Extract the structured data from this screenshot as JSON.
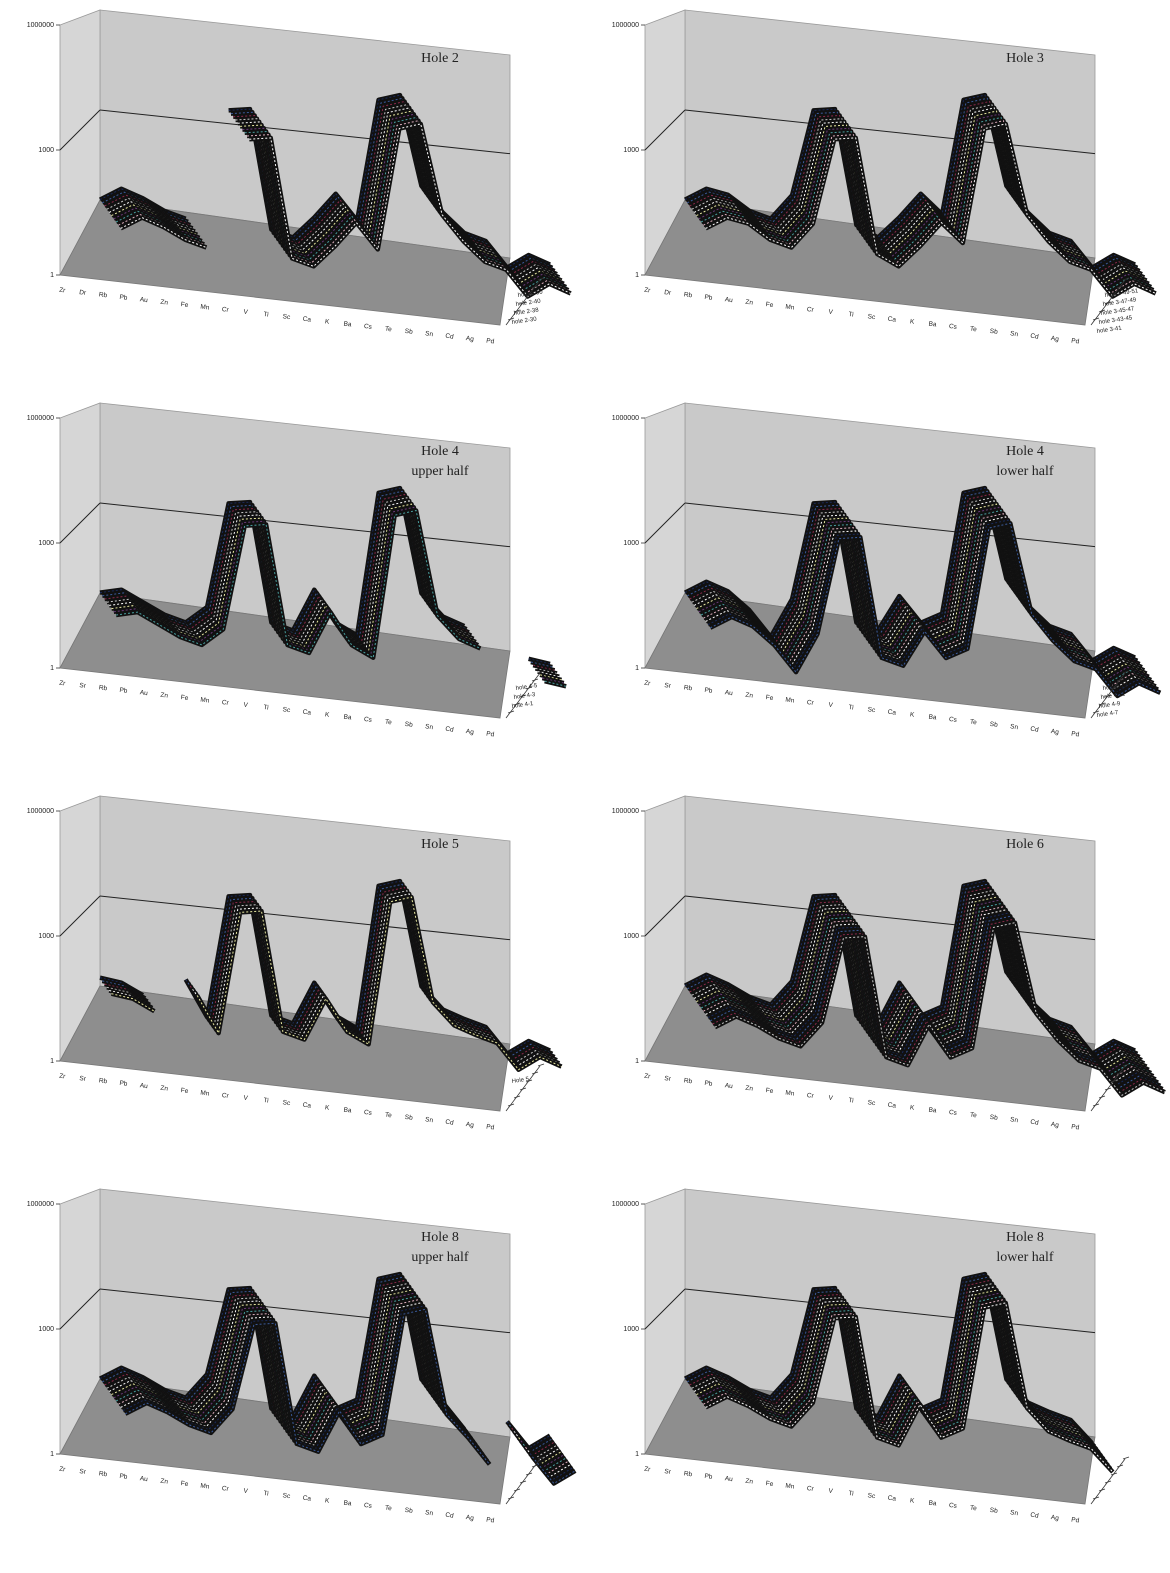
{
  "chart_data": [
    {
      "type": "line",
      "render": "3d-multi-series",
      "title": [
        "Hole 2"
      ],
      "yscale": "log",
      "yticks": [
        "1",
        "1000",
        "1000000"
      ],
      "ylim": [
        1,
        1000000
      ],
      "categories": [
        "Zr",
        "Dr",
        "Rb",
        "Pb",
        "Au",
        "Zn",
        "Fe",
        "Mn",
        "Cr",
        "V",
        "Ti",
        "Sc",
        "Ca",
        "K",
        "Ba",
        "Cs",
        "Te",
        "Sb",
        "Sn",
        "Cd",
        "Ag",
        "Pd"
      ],
      "legend_labels": [
        "hole 2-50",
        "hole 2-40",
        "hole 2-38",
        "hole 2-30"
      ],
      "series_count": 10,
      "profile": [
        90,
        200,
        120,
        60,
        40,
        null,
        50000,
        60000,
        30,
        20,
        80,
        400,
        80,
        200000,
        300000,
        1000,
        200,
        60,
        40,
        8,
        20,
        12
      ]
    },
    {
      "type": "line",
      "render": "3d-multi-series",
      "title": [
        "Hole 3"
      ],
      "yscale": "log",
      "yticks": [
        "1",
        "1000",
        "1000000"
      ],
      "ylim": [
        1,
        1000000
      ],
      "categories": [
        "Zr",
        "Dr",
        "Rb",
        "Pb",
        "Au",
        "Zn",
        "Fe",
        "Mn",
        "Cr",
        "V",
        "Ti",
        "Sc",
        "Ca",
        "K",
        "Ba",
        "Cs",
        "Te",
        "Sb",
        "Sn",
        "Cd",
        "Ag",
        "Pd"
      ],
      "legend_labels": [
        "hole 3-49-51",
        "hole 3-47-49",
        "hole 3-45-47",
        "hole 3-43-45",
        "hole 3-41"
      ],
      "series_count": 10,
      "profile": [
        90,
        200,
        150,
        60,
        40,
        200,
        50000,
        60000,
        40,
        20,
        80,
        400,
        120,
        200000,
        300000,
        1000,
        200,
        60,
        40,
        8,
        20,
        12
      ]
    },
    {
      "type": "line",
      "render": "3d-multi-series",
      "title": [
        "Hole 4",
        "upper half"
      ],
      "yscale": "log",
      "yticks": [
        "1",
        "1000",
        "1000000"
      ],
      "ylim": [
        1,
        1000000
      ],
      "categories": [
        "Zr",
        "Sr",
        "Rb",
        "Pb",
        "Au",
        "Zn",
        "Fe",
        "Mn",
        "Cr",
        "V",
        "Ti",
        "Sc",
        "Ca",
        "K",
        "Ba",
        "Cs",
        "Te",
        "Sb",
        "Sn",
        "Cd",
        "Ag",
        "Pd"
      ],
      "legend_labels": [
        "hole 4-5",
        "hole 4-3",
        "hole 4-1"
      ],
      "series_count": 8,
      "profile": [
        90,
        120,
        60,
        30,
        20,
        60,
        50000,
        60000,
        30,
        20,
        300,
        40,
        20,
        200000,
        300000,
        400,
        100,
        60,
        null,
        null,
        10,
        8
      ]
    },
    {
      "type": "line",
      "render": "3d-multi-series",
      "title": [
        "Hole 4",
        "lower half"
      ],
      "yscale": "log",
      "yticks": [
        "1",
        "1000",
        "1000000"
      ],
      "ylim": [
        1,
        1000000
      ],
      "categories": [
        "Zr",
        "Sr",
        "Rb",
        "Pb",
        "Au",
        "Zn",
        "Fe",
        "Mn",
        "Cr",
        "V",
        "Ti",
        "Sc",
        "Ca",
        "K",
        "Ba",
        "Cs",
        "Te",
        "Sb",
        "Sn",
        "Cd",
        "Ag",
        "Pd"
      ],
      "legend_labels": [
        "hole 4-13",
        "hole 4-11",
        "hole 4-9",
        "hole 4-7"
      ],
      "series_count": 12,
      "profile": [
        90,
        200,
        120,
        40,
        8,
        100,
        50000,
        60000,
        30,
        20,
        200,
        40,
        80,
        200000,
        300000,
        1000,
        200,
        60,
        40,
        8,
        20,
        12
      ]
    },
    {
      "type": "line",
      "render": "3d-multi-series",
      "title": [
        "Hole 5"
      ],
      "yscale": "log",
      "yticks": [
        "1",
        "1000",
        "1000000"
      ],
      "ylim": [
        1,
        1000000
      ],
      "categories": [
        "Zr",
        "Sr",
        "Rb",
        "Pb",
        "Au",
        "Zn",
        "Fe",
        "Mn",
        "Cr",
        "V",
        "Ti",
        "Sc",
        "Ca",
        "K",
        "Ba",
        "Cs",
        "Te",
        "Sb",
        "Sn",
        "Cd",
        "Ag",
        "Pd"
      ],
      "legend_labels": [
        "Hole 5"
      ],
      "series_count": 6,
      "profile": [
        150,
        120,
        60,
        null,
        200,
        20,
        50000,
        60000,
        30,
        20,
        300,
        40,
        20,
        200000,
        300000,
        400,
        100,
        60,
        40,
        8,
        20,
        12
      ]
    },
    {
      "type": "line",
      "render": "3d-multi-series",
      "title": [
        "Hole 6"
      ],
      "yscale": "log",
      "yticks": [
        "1",
        "1000",
        "1000000"
      ],
      "ylim": [
        1,
        1000000
      ],
      "categories": [
        "Zr",
        "Sr",
        "Rb",
        "Pb",
        "Au",
        "Zn",
        "Fe",
        "Mn",
        "Cr",
        "V",
        "Ti",
        "Sc",
        "Ca",
        "K",
        "Ba",
        "Cs",
        "Te",
        "Sb",
        "Sn",
        "Cd",
        "Ag",
        "Pd"
      ],
      "legend_labels": [],
      "series_count": 14,
      "profile": [
        90,
        200,
        120,
        60,
        40,
        200,
        50000,
        60000,
        30,
        20,
        300,
        40,
        80,
        200000,
        300000,
        1000,
        200,
        60,
        40,
        8,
        20,
        12
      ]
    },
    {
      "type": "line",
      "render": "3d-multi-series",
      "title": [
        "Hole 8",
        "upper half"
      ],
      "yscale": "log",
      "yticks": [
        "1",
        "1000",
        "1000000"
      ],
      "ylim": [
        1,
        1000000
      ],
      "categories": [
        "Zr",
        "Sr",
        "Rb",
        "Pb",
        "Au",
        "Zn",
        "Fe",
        "Mn",
        "Cr",
        "V",
        "Ti",
        "Sc",
        "Ca",
        "K",
        "Ba",
        "Cs",
        "Te",
        "Sb",
        "Sn",
        "Cd",
        "Ag",
        "Pd"
      ],
      "legend_labels": [],
      "series_count": 12,
      "profile": [
        90,
        200,
        120,
        60,
        40,
        200,
        50000,
        60000,
        30,
        20,
        300,
        40,
        80,
        200000,
        300000,
        400,
        100,
        20,
        null,
        40,
        8,
        20
      ]
    },
    {
      "type": "line",
      "render": "3d-multi-series",
      "title": [
        "Hole 8",
        "lower half"
      ],
      "yscale": "log",
      "yticks": [
        "1",
        "1000",
        "1000000"
      ],
      "ylim": [
        1,
        1000000
      ],
      "categories": [
        "Zr",
        "Sr",
        "Rb",
        "Pb",
        "Au",
        "Zn",
        "Fe",
        "Mn",
        "Cr",
        "V",
        "Ti",
        "Sc",
        "Ca",
        "K",
        "Ba",
        "Cs",
        "Te",
        "Sb",
        "Sn",
        "Cd",
        "Ag",
        "Pd"
      ],
      "legend_labels": [],
      "series_count": 10,
      "profile": [
        90,
        200,
        120,
        60,
        40,
        200,
        50000,
        60000,
        30,
        20,
        300,
        40,
        80,
        200000,
        300000,
        400,
        100,
        60,
        40,
        10,
        null,
        12
      ]
    }
  ]
}
